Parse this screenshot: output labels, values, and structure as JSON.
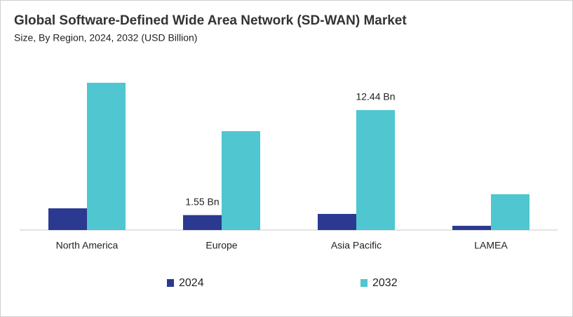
{
  "chart_data": {
    "type": "bar",
    "title": "Global Software-Defined Wide Area Network (SD-WAN) Market",
    "subtitle": "Size, By Region, 2024, 2032 (USD Billion)",
    "categories": [
      "North America",
      "Europe",
      "Asia Pacific",
      "LAMEA"
    ],
    "series": [
      {
        "name": "2024",
        "color": "#2b3990",
        "values": [
          2.25,
          1.55,
          1.67,
          0.44
        ],
        "value_labels": [
          null,
          "1.55 Bn",
          null,
          null
        ]
      },
      {
        "name": "2032",
        "color": "#4fc6d0",
        "values": [
          15.27,
          10.25,
          12.44,
          3.71
        ],
        "value_labels": [
          null,
          null,
          "12.44 Bn",
          null
        ]
      }
    ]
  }
}
